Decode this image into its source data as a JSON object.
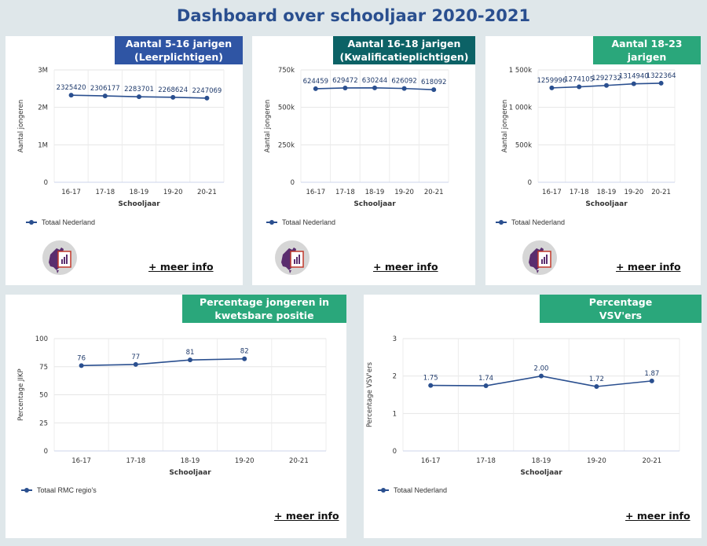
{
  "page": {
    "title": "Dashboard over schooljaar 2020-2021"
  },
  "colors": {
    "header_blue": "#2f55a4",
    "header_teal": "#0c6266",
    "header_green": "#2aa77b",
    "series": "#2a4f8f",
    "background": "#dfe7ea"
  },
  "cards": [
    {
      "header_lines": [
        "Aantal 5-16 jarigen",
        "(Leerplichtigen)"
      ],
      "header_color": "#2f55a4",
      "legend": "Totaal Nederland",
      "link": "+ meer info",
      "has_icon": true,
      "icon": "report-map-icon"
    },
    {
      "header_lines": [
        "Aantal 16-18 jarigen",
        "(Kwalificatieplichtigen)"
      ],
      "header_color": "#0c6266",
      "legend": "Totaal Nederland",
      "link": "+ meer info",
      "has_icon": true,
      "icon": "report-map-icon"
    },
    {
      "header_lines": [
        "Aantal 18-23",
        "jarigen"
      ],
      "header_color": "#2aa77b",
      "legend": "Totaal Nederland",
      "link": "+ meer info",
      "has_icon": true,
      "icon": "report-map-icon"
    },
    {
      "header_lines": [
        "Percentage jongeren in",
        "kwetsbare positie"
      ],
      "header_color": "#2aa77b",
      "legend": "Totaal RMC regio's",
      "link": "+ meer info",
      "has_icon": false
    },
    {
      "header_lines": [
        "Percentage",
        "VSV'ers"
      ],
      "header_color": "#2aa77b",
      "legend": "Totaal Nederland",
      "link": "+ meer info",
      "has_icon": false
    }
  ],
  "chart_data": [
    {
      "type": "line",
      "categories": [
        "16-17",
        "17-18",
        "18-19",
        "19-20",
        "20-21"
      ],
      "series": [
        {
          "name": "Totaal Nederland",
          "values": [
            2325420,
            2306177,
            2283701,
            2268624,
            2247069
          ]
        }
      ],
      "data_labels": [
        "2325420",
        "2306177",
        "2283701",
        "2268624",
        "2247069"
      ],
      "xlabel": "Schooljaar",
      "ylabel": "Aantal jongeren",
      "ylim": [
        0,
        3000000
      ],
      "yticks": [
        0,
        1000000,
        2000000,
        3000000
      ],
      "ytick_labels": [
        "0",
        "1M",
        "2M",
        "3M"
      ],
      "grid": true,
      "legend_position": "bottom-left"
    },
    {
      "type": "line",
      "categories": [
        "16-17",
        "17-18",
        "18-19",
        "19-20",
        "20-21"
      ],
      "series": [
        {
          "name": "Totaal Nederland",
          "values": [
            624459,
            629472,
            630244,
            626092,
            618092
          ]
        }
      ],
      "data_labels": [
        "624459",
        "629472",
        "630244",
        "626092",
        "618092"
      ],
      "xlabel": "Schooljaar",
      "ylabel": "Aantal jongeren",
      "ylim": [
        0,
        750000
      ],
      "yticks": [
        0,
        250000,
        500000,
        750000
      ],
      "ytick_labels": [
        "0",
        "250k",
        "500k",
        "750k"
      ],
      "grid": true,
      "legend_position": "bottom-left"
    },
    {
      "type": "line",
      "categories": [
        "16-17",
        "17-18",
        "18-19",
        "19-20",
        "20-21"
      ],
      "series": [
        {
          "name": "Totaal Nederland",
          "values": [
            1259996,
            1274105,
            1292732,
            1314940,
            1322364
          ]
        }
      ],
      "data_labels": [
        "1259996",
        "1274105",
        "1292732",
        "1314940",
        "1322364"
      ],
      "xlabel": "Schooljaar",
      "ylabel": "Aantal jongeren",
      "ylim": [
        0,
        1500000
      ],
      "yticks": [
        0,
        500000,
        1000000,
        1500000
      ],
      "ytick_labels": [
        "0",
        "500k",
        "1 000k",
        "1 500k"
      ],
      "grid": true,
      "legend_position": "bottom-left"
    },
    {
      "type": "line",
      "categories": [
        "16-17",
        "17-18",
        "18-19",
        "19-20",
        "20-21"
      ],
      "series": [
        {
          "name": "Totaal RMC regio's",
          "values": [
            76,
            77,
            81,
            82,
            null
          ]
        }
      ],
      "data_labels": [
        "76",
        "77",
        "81",
        "82",
        ""
      ],
      "xlabel": "Schooljaar",
      "ylabel": "Percentage JIKP",
      "ylim": [
        0,
        100
      ],
      "yticks": [
        0,
        25,
        50,
        75,
        100
      ],
      "ytick_labels": [
        "0",
        "25",
        "50",
        "75",
        "100"
      ],
      "grid": true,
      "legend_position": "bottom-left"
    },
    {
      "type": "line",
      "categories": [
        "16-17",
        "17-18",
        "18-19",
        "19-20",
        "20-21"
      ],
      "series": [
        {
          "name": "Totaal Nederland",
          "values": [
            1.75,
            1.74,
            2.0,
            1.72,
            1.87
          ]
        }
      ],
      "data_labels": [
        "1.75",
        "1.74",
        "2.00",
        "1.72",
        "1.87"
      ],
      "xlabel": "Schooljaar",
      "ylabel": "Percentage VSV'ers",
      "ylim": [
        0,
        3
      ],
      "yticks": [
        0,
        1,
        2,
        3
      ],
      "ytick_labels": [
        "0",
        "1",
        "2",
        "3"
      ],
      "grid": true,
      "legend_position": "bottom-left"
    }
  ]
}
